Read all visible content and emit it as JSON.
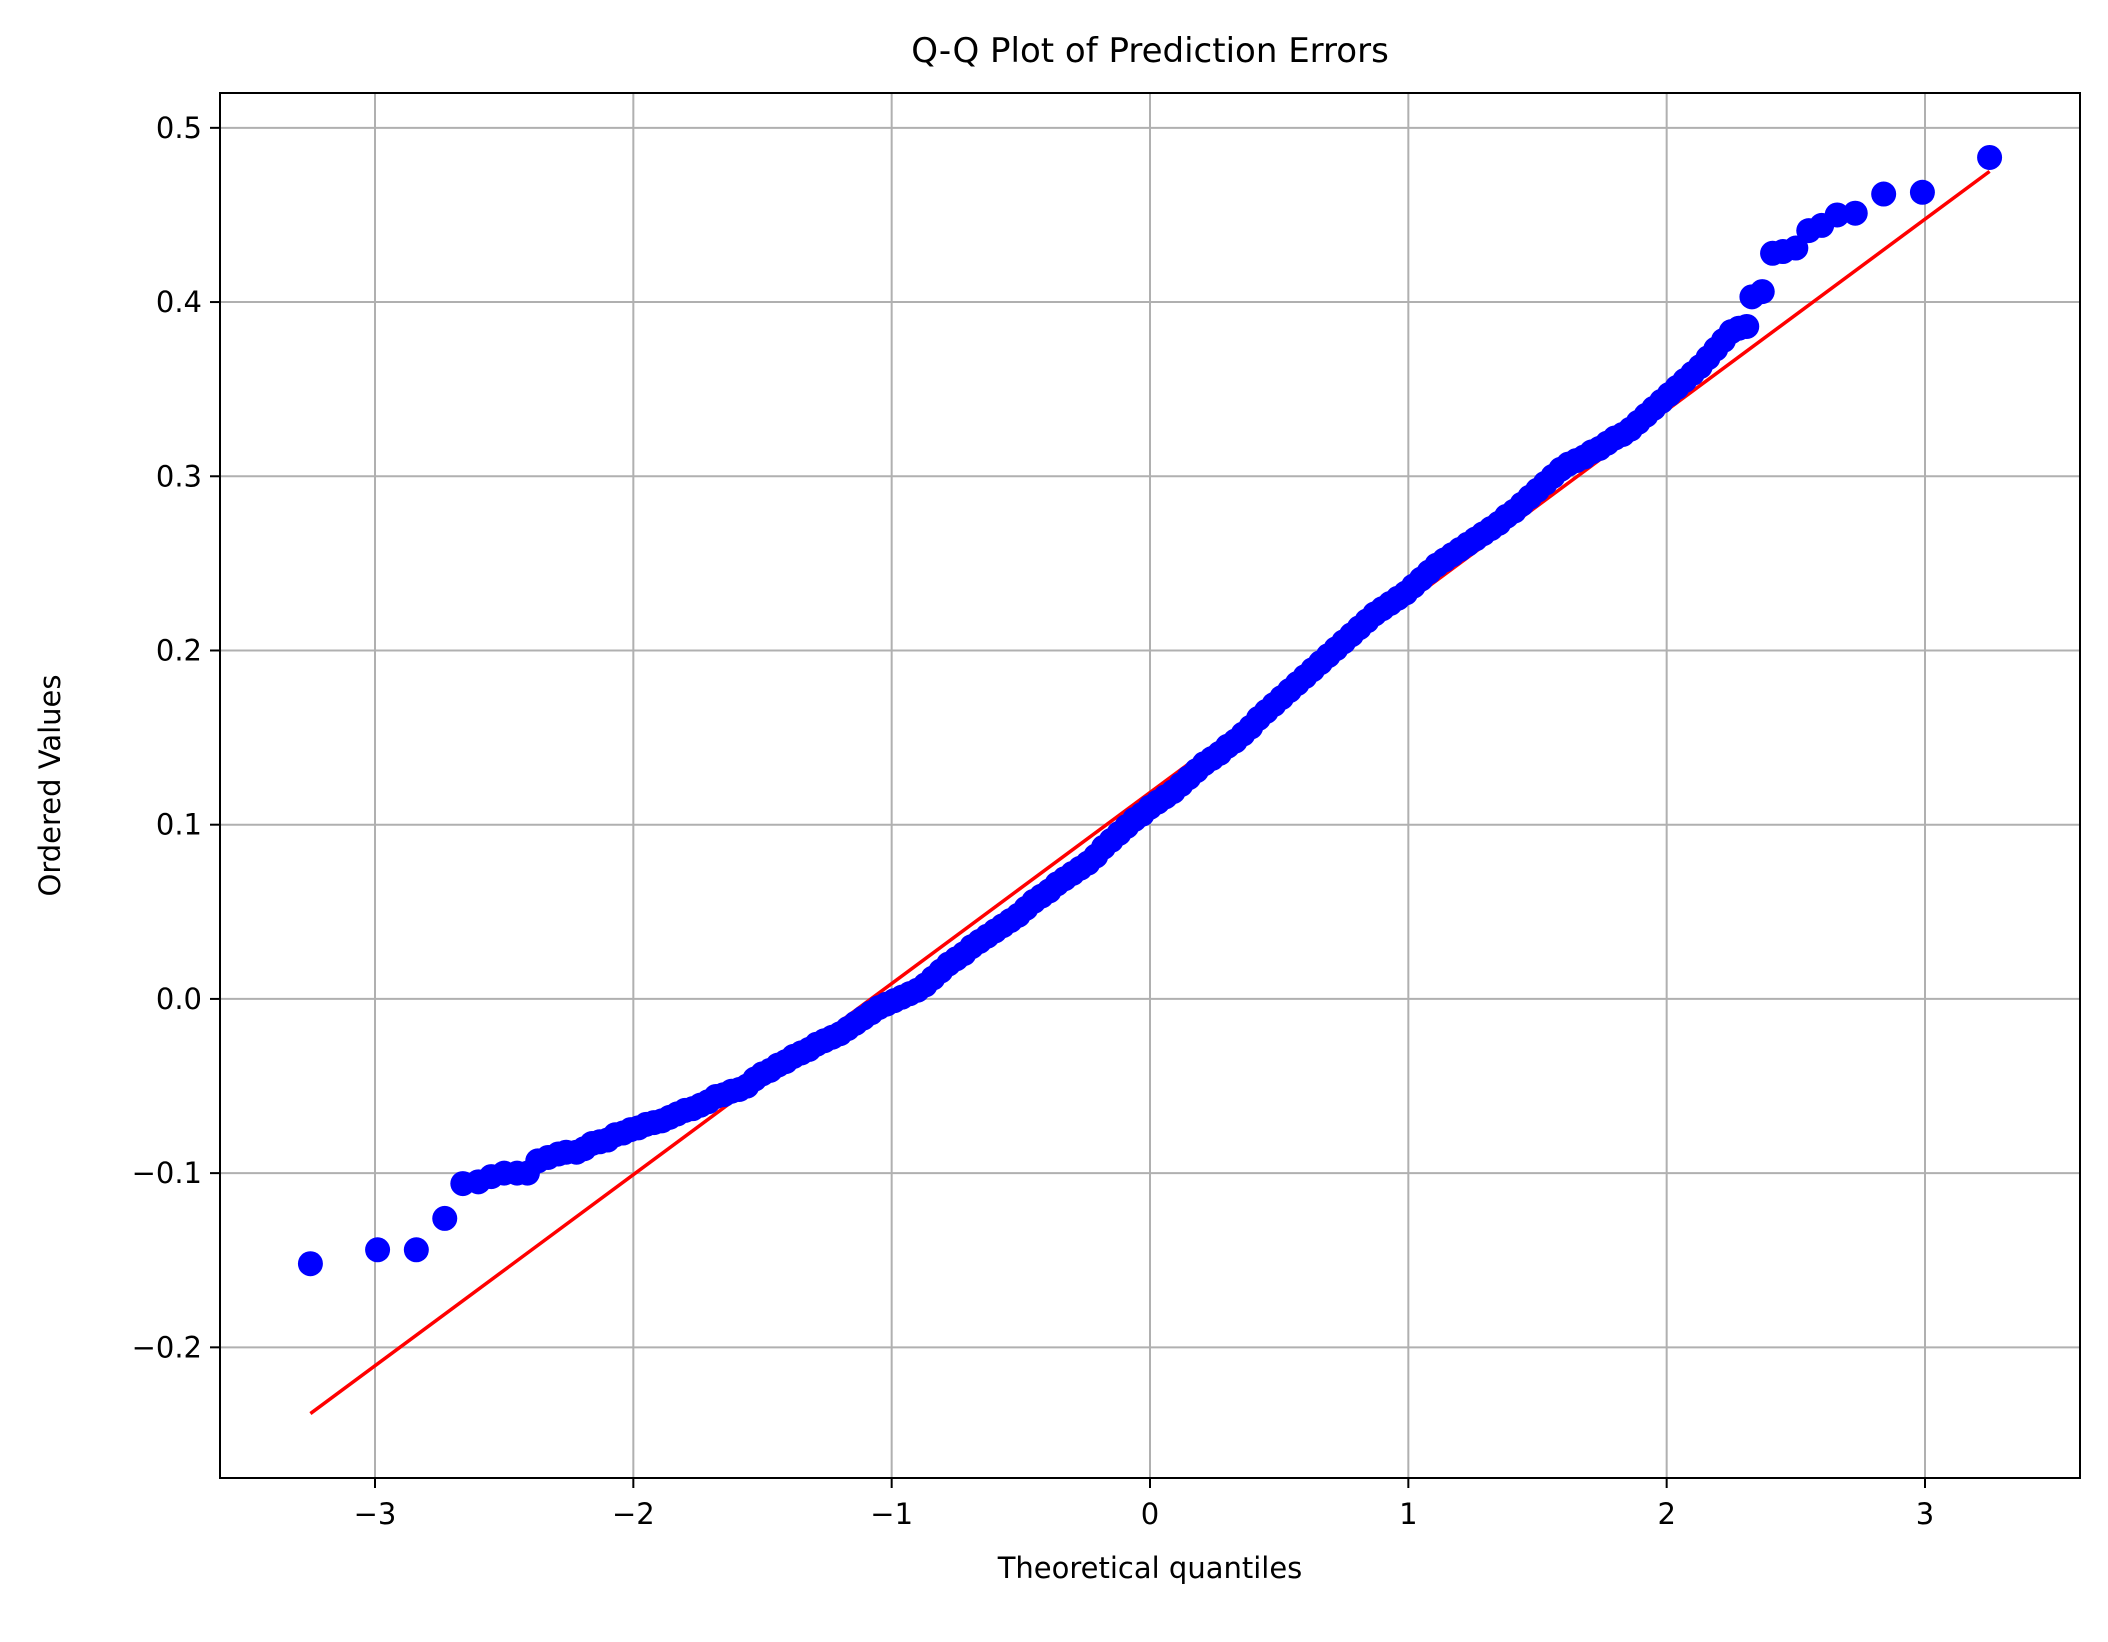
{
  "chart_data": {
    "type": "scatter",
    "title": "Q-Q Plot of Prediction Errors",
    "xlabel": "Theoretical quantiles",
    "ylabel": "Ordered Values",
    "xlim": [
      -3.6,
      3.6
    ],
    "ylim": [
      -0.275,
      0.52
    ],
    "grid": true,
    "x_ticks": [
      {
        "value": -3,
        "label": "−3"
      },
      {
        "value": -2,
        "label": "−2"
      },
      {
        "value": -1,
        "label": "−1"
      },
      {
        "value": 0,
        "label": "0"
      },
      {
        "value": 1,
        "label": "1"
      },
      {
        "value": 2,
        "label": "2"
      },
      {
        "value": 3,
        "label": "3"
      }
    ],
    "y_ticks": [
      {
        "value": -0.2,
        "label": "−0.2"
      },
      {
        "value": -0.1,
        "label": "−0.1"
      },
      {
        "value": 0.0,
        "label": "0.0"
      },
      {
        "value": 0.1,
        "label": "0.1"
      },
      {
        "value": 0.2,
        "label": "0.2"
      },
      {
        "value": 0.3,
        "label": "0.3"
      },
      {
        "value": 0.4,
        "label": "0.4"
      },
      {
        "value": 0.5,
        "label": "0.5"
      }
    ],
    "series": [
      {
        "kind": "points",
        "color": "#0000ff",
        "points": [
          [
            -3.25,
            -0.152
          ],
          [
            -2.99,
            -0.144
          ],
          [
            -2.84,
            -0.144
          ],
          [
            -2.73,
            -0.126
          ],
          [
            -2.66,
            -0.106
          ],
          [
            -2.6,
            -0.105
          ],
          [
            -2.55,
            -0.102
          ],
          [
            -2.5,
            -0.1
          ],
          [
            -2.45,
            -0.1
          ],
          [
            -2.41,
            -0.1
          ],
          [
            -2.37,
            -0.093
          ],
          [
            -2.33,
            -0.091
          ],
          [
            -2.29,
            -0.089
          ],
          [
            -2.26,
            -0.088
          ],
          [
            -2.22,
            -0.088
          ],
          [
            -2.19,
            -0.086
          ],
          [
            -2.16,
            -0.083
          ],
          [
            -2.13,
            -0.082
          ],
          [
            -2.1,
            -0.081
          ],
          [
            -2.07,
            -0.078
          ],
          [
            -2.04,
            -0.077
          ],
          [
            -2.01,
            -0.075
          ],
          [
            -1.98,
            -0.074
          ],
          [
            -1.95,
            -0.072
          ],
          [
            -1.92,
            -0.071
          ],
          [
            -1.89,
            -0.07
          ],
          [
            -1.86,
            -0.068
          ],
          [
            -1.83,
            -0.066
          ],
          [
            -1.8,
            -0.064
          ],
          [
            -1.77,
            -0.063
          ],
          [
            -1.74,
            -0.061
          ],
          [
            -1.71,
            -0.059
          ],
          [
            -1.68,
            -0.056
          ],
          [
            -1.65,
            -0.055
          ],
          [
            -1.62,
            -0.053
          ],
          [
            -1.59,
            -0.052
          ],
          [
            -1.56,
            -0.05
          ],
          [
            -1.53,
            -0.046
          ],
          [
            -1.5,
            -0.043
          ],
          [
            -1.47,
            -0.041
          ],
          [
            -1.44,
            -0.038
          ],
          [
            -1.41,
            -0.036
          ],
          [
            -1.38,
            -0.033
          ],
          [
            -1.35,
            -0.031
          ],
          [
            -1.32,
            -0.029
          ],
          [
            -1.29,
            -0.026
          ],
          [
            -1.26,
            -0.024
          ],
          [
            -1.23,
            -0.022
          ],
          [
            -1.2,
            -0.02
          ],
          [
            -1.17,
            -0.017
          ],
          [
            -1.14,
            -0.014
          ],
          [
            -1.11,
            -0.011
          ],
          [
            -1.08,
            -0.008
          ],
          [
            -1.05,
            -0.005
          ],
          [
            -1.02,
            -0.003
          ],
          [
            -0.99,
            -0.001
          ],
          [
            -0.96,
            0.001
          ],
          [
            -0.93,
            0.003
          ],
          [
            -0.9,
            0.005
          ],
          [
            -0.87,
            0.008
          ],
          [
            -0.84,
            0.012
          ],
          [
            -0.81,
            0.016
          ],
          [
            -0.78,
            0.02
          ],
          [
            -0.75,
            0.023
          ],
          [
            -0.72,
            0.026
          ],
          [
            -0.69,
            0.03
          ],
          [
            -0.66,
            0.033
          ],
          [
            -0.63,
            0.036
          ],
          [
            -0.6,
            0.039
          ],
          [
            -0.57,
            0.042
          ],
          [
            -0.54,
            0.045
          ],
          [
            -0.51,
            0.048
          ],
          [
            -0.48,
            0.052
          ],
          [
            -0.45,
            0.056
          ],
          [
            -0.42,
            0.059
          ],
          [
            -0.39,
            0.062
          ],
          [
            -0.36,
            0.066
          ],
          [
            -0.33,
            0.069
          ],
          [
            -0.3,
            0.072
          ],
          [
            -0.27,
            0.075
          ],
          [
            -0.24,
            0.078
          ],
          [
            -0.21,
            0.082
          ],
          [
            -0.18,
            0.087
          ],
          [
            -0.15,
            0.091
          ],
          [
            -0.12,
            0.095
          ],
          [
            -0.09,
            0.099
          ],
          [
            -0.06,
            0.103
          ],
          [
            -0.03,
            0.106
          ],
          [
            0.0,
            0.11
          ],
          [
            0.03,
            0.113
          ],
          [
            0.06,
            0.116
          ],
          [
            0.09,
            0.119
          ],
          [
            0.12,
            0.123
          ],
          [
            0.15,
            0.127
          ],
          [
            0.18,
            0.131
          ],
          [
            0.21,
            0.135
          ],
          [
            0.24,
            0.138
          ],
          [
            0.27,
            0.141
          ],
          [
            0.3,
            0.145
          ],
          [
            0.33,
            0.148
          ],
          [
            0.36,
            0.152
          ],
          [
            0.39,
            0.156
          ],
          [
            0.42,
            0.161
          ],
          [
            0.45,
            0.165
          ],
          [
            0.48,
            0.169
          ],
          [
            0.51,
            0.173
          ],
          [
            0.54,
            0.177
          ],
          [
            0.57,
            0.181
          ],
          [
            0.6,
            0.185
          ],
          [
            0.63,
            0.189
          ],
          [
            0.66,
            0.193
          ],
          [
            0.69,
            0.197
          ],
          [
            0.72,
            0.201
          ],
          [
            0.75,
            0.205
          ],
          [
            0.78,
            0.209
          ],
          [
            0.81,
            0.213
          ],
          [
            0.84,
            0.217
          ],
          [
            0.87,
            0.221
          ],
          [
            0.9,
            0.224
          ],
          [
            0.93,
            0.227
          ],
          [
            0.96,
            0.23
          ],
          [
            0.99,
            0.233
          ],
          [
            1.02,
            0.237
          ],
          [
            1.05,
            0.241
          ],
          [
            1.08,
            0.245
          ],
          [
            1.11,
            0.249
          ],
          [
            1.14,
            0.252
          ],
          [
            1.17,
            0.255
          ],
          [
            1.2,
            0.258
          ],
          [
            1.23,
            0.261
          ],
          [
            1.26,
            0.264
          ],
          [
            1.29,
            0.267
          ],
          [
            1.32,
            0.27
          ],
          [
            1.35,
            0.273
          ],
          [
            1.38,
            0.277
          ],
          [
            1.41,
            0.28
          ],
          [
            1.44,
            0.284
          ],
          [
            1.47,
            0.288
          ],
          [
            1.5,
            0.292
          ],
          [
            1.53,
            0.296
          ],
          [
            1.56,
            0.3
          ],
          [
            1.59,
            0.304
          ],
          [
            1.62,
            0.307
          ],
          [
            1.65,
            0.309
          ],
          [
            1.68,
            0.311
          ],
          [
            1.71,
            0.314
          ],
          [
            1.74,
            0.316
          ],
          [
            1.77,
            0.319
          ],
          [
            1.8,
            0.322
          ],
          [
            1.83,
            0.324
          ],
          [
            1.86,
            0.327
          ],
          [
            1.89,
            0.331
          ],
          [
            1.92,
            0.335
          ],
          [
            1.95,
            0.339
          ],
          [
            1.98,
            0.343
          ],
          [
            2.01,
            0.347
          ],
          [
            2.04,
            0.351
          ],
          [
            2.07,
            0.355
          ],
          [
            2.1,
            0.359
          ],
          [
            2.13,
            0.363
          ],
          [
            2.16,
            0.368
          ],
          [
            2.19,
            0.373
          ],
          [
            2.22,
            0.378
          ],
          [
            2.25,
            0.383
          ],
          [
            2.28,
            0.385
          ],
          [
            2.31,
            0.386
          ],
          [
            2.33,
            0.403
          ],
          [
            2.37,
            0.406
          ],
          [
            2.41,
            0.428
          ],
          [
            2.45,
            0.429
          ],
          [
            2.5,
            0.431
          ],
          [
            2.55,
            0.441
          ],
          [
            2.6,
            0.444
          ],
          [
            2.66,
            0.45
          ],
          [
            2.73,
            0.451
          ],
          [
            2.84,
            0.462
          ],
          [
            2.99,
            0.463
          ],
          [
            3.25,
            0.483
          ]
        ]
      },
      {
        "kind": "fit-line",
        "color": "#ff0000",
        "x": [
          -3.25,
          3.25
        ],
        "y": [
          -0.238,
          0.475
        ]
      }
    ]
  }
}
